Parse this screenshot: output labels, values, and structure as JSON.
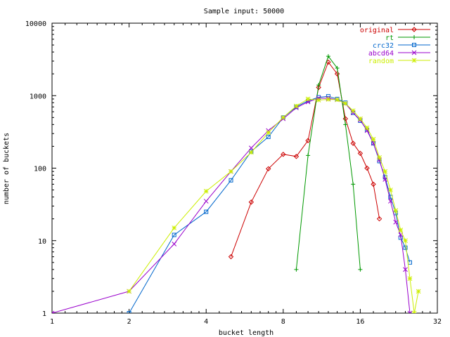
{
  "chart_data": {
    "type": "line",
    "title": "Sample input: 50000",
    "xlabel": "bucket length",
    "ylabel": "number of buckets",
    "x_scale": "log2",
    "y_scale": "log10",
    "xlim": [
      1,
      32
    ],
    "ylim": [
      1,
      10000
    ],
    "x_ticks": [
      1,
      2,
      4,
      8,
      16,
      32
    ],
    "x_tick_labels": [
      "1",
      "2",
      "4",
      "8",
      "16",
      "32"
    ],
    "y_ticks": [
      1,
      10,
      100,
      1000,
      10000
    ],
    "y_tick_labels": [
      "1",
      "10",
      "100",
      "1000",
      "10000"
    ],
    "grid": false,
    "legend_position": "top-right",
    "series": [
      {
        "name": "original",
        "color": "#cc0000",
        "marker": "diamond",
        "x": [
          5,
          6,
          7,
          8,
          9,
          10,
          11,
          12,
          13,
          14,
          15,
          16,
          17,
          18,
          19
        ],
        "y": [
          6,
          34,
          98,
          155,
          145,
          240,
          1300,
          2900,
          2000,
          480,
          220,
          160,
          100,
          60,
          20
        ]
      },
      {
        "name": "rt",
        "color": "#009900",
        "marker": "plus",
        "x": [
          9,
          10,
          11,
          12,
          13,
          14,
          15,
          16
        ],
        "y": [
          4,
          150,
          1400,
          3500,
          2400,
          400,
          60,
          4
        ]
      },
      {
        "name": "crc32",
        "color": "#0066cc",
        "marker": "square",
        "x": [
          2,
          3,
          4,
          5,
          6,
          7,
          8,
          9,
          10,
          11,
          12,
          13,
          14,
          15,
          16,
          17,
          18,
          19,
          20,
          21,
          22,
          23,
          24,
          25
        ],
        "y": [
          1,
          12,
          25,
          68,
          170,
          270,
          500,
          700,
          850,
          950,
          980,
          900,
          800,
          580,
          450,
          340,
          220,
          125,
          75,
          40,
          24,
          11,
          8,
          5
        ]
      },
      {
        "name": "abcd64",
        "color": "#9900cc",
        "marker": "x",
        "x": [
          1,
          2,
          3,
          4,
          5,
          6,
          7,
          8,
          9,
          10,
          11,
          12,
          13,
          14,
          15,
          16,
          17,
          18,
          19,
          20,
          21,
          22,
          23,
          24,
          25
        ],
        "y": [
          1,
          2,
          9,
          35,
          90,
          190,
          330,
          480,
          680,
          820,
          920,
          920,
          880,
          780,
          580,
          460,
          330,
          220,
          130,
          70,
          35,
          18,
          12,
          4,
          1
        ]
      },
      {
        "name": "random",
        "color": "#ccee00",
        "marker": "star",
        "x": [
          2,
          3,
          4,
          5,
          6,
          7,
          8,
          9,
          10,
          11,
          12,
          13,
          14,
          15,
          16,
          17,
          18,
          19,
          20,
          21,
          22,
          23,
          24,
          25,
          26,
          27
        ],
        "y": [
          2,
          15,
          48,
          90,
          165,
          310,
          500,
          720,
          900,
          870,
          890,
          880,
          780,
          620,
          480,
          360,
          250,
          140,
          90,
          50,
          26,
          14,
          10,
          3,
          1,
          2
        ]
      }
    ]
  }
}
